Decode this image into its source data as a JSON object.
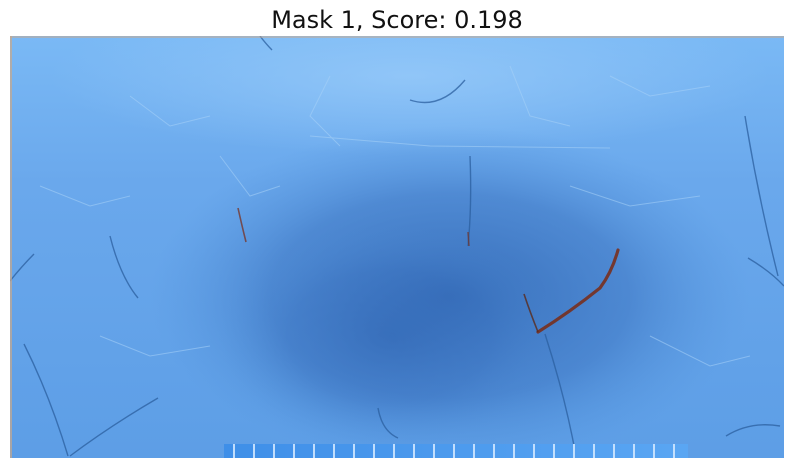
{
  "figure": {
    "title": "Mask 1, Score: 0.198"
  },
  "colors": {
    "mask_light": "#7ab9f5",
    "mask_mid": "#4f8fd8",
    "mask_dark": "#2e63b0",
    "stain": "#7a2a14",
    "edge": "#c9a88a"
  }
}
